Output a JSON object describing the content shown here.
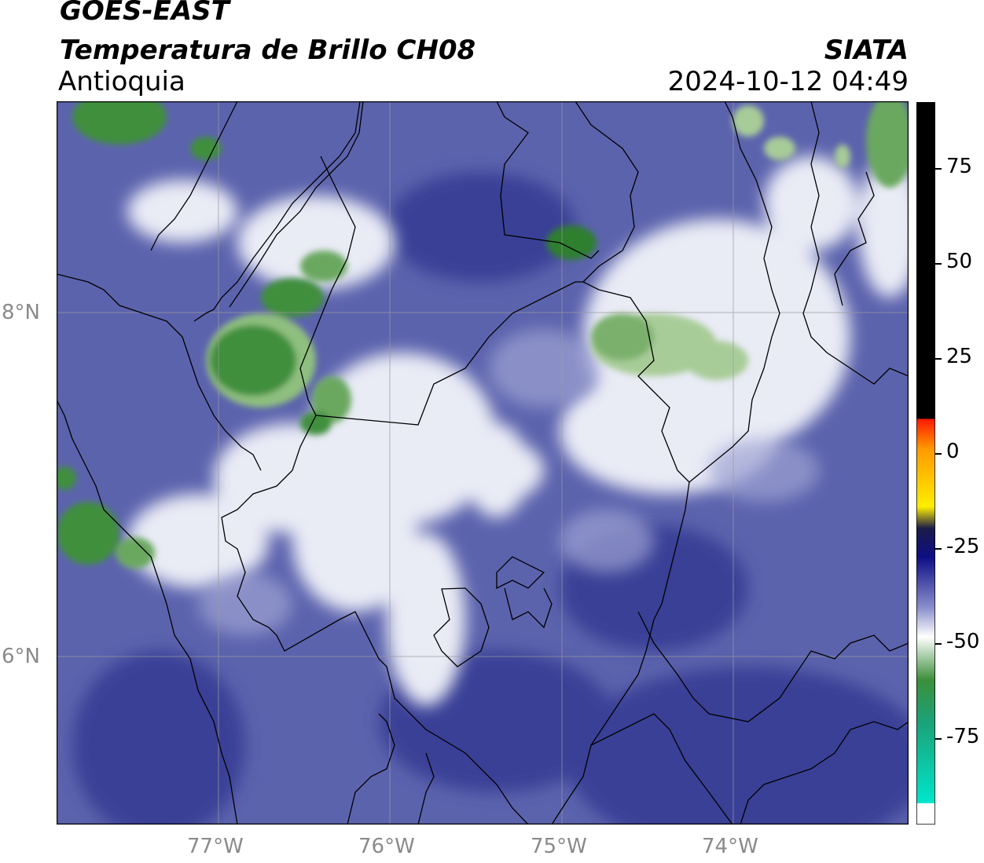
{
  "header": {
    "satellite": "GOES-EAST",
    "product": "Temperatura de Brillo CH08",
    "region": "Antioquia",
    "agency": "SIATA",
    "timestamp": "2024-10-12 04:49"
  },
  "map": {
    "lat_labels": [
      "8°N",
      "6°N"
    ],
    "lon_labels": [
      "77°W",
      "76°W",
      "75°W",
      "74°W"
    ],
    "colors": {
      "background": "#5c63ad",
      "dark_blue": "#2f3490",
      "light": "#eef0f6",
      "green": "#3f8f3c",
      "border": "#000000"
    }
  },
  "colorbar": {
    "labels": [
      "75",
      "50",
      "25",
      "0",
      "-25",
      "-50",
      "-75"
    ],
    "stops": [
      "#000000",
      "#ff2200",
      "#ff9900",
      "#ffee00",
      "#1b1b48",
      "#0e0e86",
      "#8a8fcc",
      "#ffffff",
      "#3c8f3a",
      "#00e6cc",
      "#ffffff"
    ]
  }
}
